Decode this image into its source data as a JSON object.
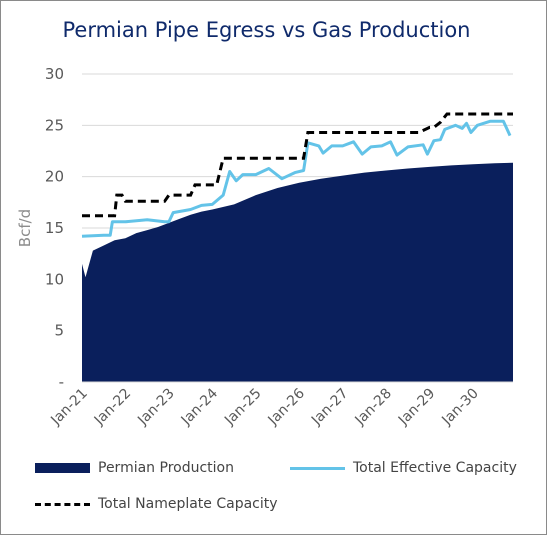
{
  "chart_data": {
    "type": "area",
    "title": "Permian Pipe Egress vs Gas Production",
    "ylabel": "Bcf/d",
    "xlabel": "",
    "ylim": [
      0,
      30
    ],
    "yticks": [
      "-",
      "5",
      "10",
      "15",
      "20",
      "25",
      "30"
    ],
    "xticks": [
      "Jan-21",
      "Jan-22",
      "Jan-23",
      "Jan-24",
      "Jan-25",
      "Jan-26",
      "Jan-27",
      "Jan-28",
      "Jan-29",
      "Jan-30"
    ],
    "grid": "horizontal",
    "legend_position": "bottom",
    "x_range_years": [
      2021,
      2030.92
    ],
    "series": [
      {
        "name": "Permian Production",
        "style": "area",
        "color": "#0a1f5c",
        "points": [
          [
            2021.0,
            11.5
          ],
          [
            2021.08,
            10.2
          ],
          [
            2021.25,
            12.8
          ],
          [
            2021.5,
            13.3
          ],
          [
            2021.75,
            13.8
          ],
          [
            2022.0,
            14.0
          ],
          [
            2022.25,
            14.5
          ],
          [
            2022.5,
            14.8
          ],
          [
            2022.75,
            15.1
          ],
          [
            2023.0,
            15.5
          ],
          [
            2023.25,
            15.9
          ],
          [
            2023.5,
            16.3
          ],
          [
            2023.75,
            16.6
          ],
          [
            2024.0,
            16.8
          ],
          [
            2024.5,
            17.3
          ],
          [
            2025.0,
            18.2
          ],
          [
            2025.5,
            18.9
          ],
          [
            2026.0,
            19.4
          ],
          [
            2026.5,
            19.8
          ],
          [
            2027.0,
            20.1
          ],
          [
            2027.5,
            20.4
          ],
          [
            2028.0,
            20.6
          ],
          [
            2028.5,
            20.8
          ],
          [
            2029.0,
            20.95
          ],
          [
            2029.5,
            21.1
          ],
          [
            2030.0,
            21.2
          ],
          [
            2030.5,
            21.3
          ],
          [
            2030.92,
            21.35
          ]
        ]
      },
      {
        "name": "Total Effective Capacity",
        "style": "line",
        "color": "#63c3e8",
        "points": [
          [
            2021.0,
            14.2
          ],
          [
            2021.5,
            14.3
          ],
          [
            2021.65,
            14.3
          ],
          [
            2021.7,
            15.6
          ],
          [
            2022.0,
            15.6
          ],
          [
            2022.5,
            15.8
          ],
          [
            2022.9,
            15.6
          ],
          [
            2023.0,
            15.6
          ],
          [
            2023.1,
            16.5
          ],
          [
            2023.5,
            16.8
          ],
          [
            2023.75,
            17.2
          ],
          [
            2024.0,
            17.3
          ],
          [
            2024.25,
            18.2
          ],
          [
            2024.4,
            20.5
          ],
          [
            2024.55,
            19.6
          ],
          [
            2024.7,
            20.2
          ],
          [
            2025.0,
            20.2
          ],
          [
            2025.3,
            20.8
          ],
          [
            2025.6,
            19.8
          ],
          [
            2025.9,
            20.4
          ],
          [
            2026.1,
            20.6
          ],
          [
            2026.2,
            23.3
          ],
          [
            2026.45,
            23.0
          ],
          [
            2026.55,
            22.3
          ],
          [
            2026.75,
            23.0
          ],
          [
            2027.0,
            23.0
          ],
          [
            2027.25,
            23.4
          ],
          [
            2027.45,
            22.2
          ],
          [
            2027.65,
            22.9
          ],
          [
            2027.9,
            23.0
          ],
          [
            2028.1,
            23.4
          ],
          [
            2028.25,
            22.1
          ],
          [
            2028.5,
            22.9
          ],
          [
            2028.85,
            23.1
          ],
          [
            2028.95,
            22.2
          ],
          [
            2029.1,
            23.5
          ],
          [
            2029.25,
            23.6
          ],
          [
            2029.35,
            24.6
          ],
          [
            2029.6,
            25.0
          ],
          [
            2029.75,
            24.7
          ],
          [
            2029.85,
            25.2
          ],
          [
            2029.95,
            24.3
          ],
          [
            2030.1,
            25.0
          ],
          [
            2030.4,
            25.4
          ],
          [
            2030.7,
            25.4
          ],
          [
            2030.85,
            24.0
          ]
        ]
      },
      {
        "name": "Total Nameplate Capacity",
        "style": "dashed",
        "color": "#000000",
        "points": [
          [
            2021.0,
            16.2
          ],
          [
            2021.75,
            16.2
          ],
          [
            2021.8,
            18.2
          ],
          [
            2021.92,
            18.2
          ],
          [
            2022.0,
            17.6
          ],
          [
            2022.9,
            17.6
          ],
          [
            2023.0,
            18.2
          ],
          [
            2023.5,
            18.2
          ],
          [
            2023.6,
            19.2
          ],
          [
            2024.1,
            19.2
          ],
          [
            2024.25,
            21.8
          ],
          [
            2026.1,
            21.8
          ],
          [
            2026.2,
            24.3
          ],
          [
            2028.75,
            24.3
          ],
          [
            2029.0,
            24.8
          ],
          [
            2029.1,
            24.8
          ],
          [
            2029.25,
            25.3
          ],
          [
            2029.4,
            26.1
          ],
          [
            2030.92,
            26.1
          ]
        ]
      }
    ]
  }
}
